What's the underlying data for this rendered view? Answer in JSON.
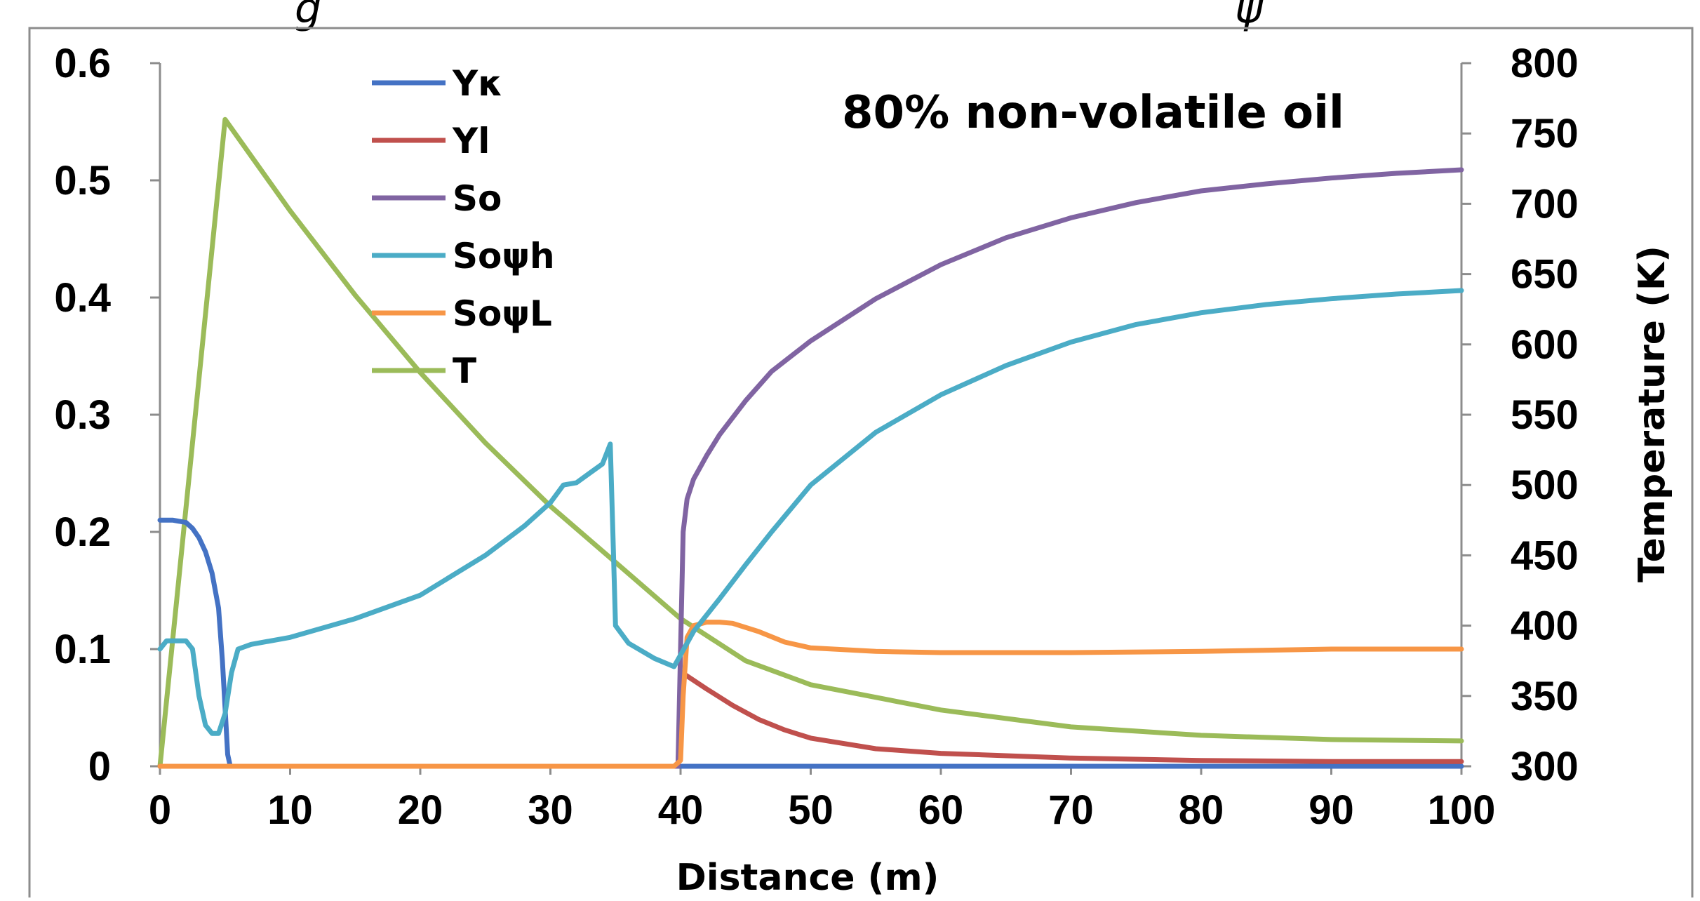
{
  "chart_data": {
    "type": "line",
    "title": "",
    "annotation": "80% non-volatile oil",
    "xlabel": "Distance (m)",
    "ylabel_left": "",
    "ylabel_right": "Temperature (K)",
    "xlim": [
      0,
      100
    ],
    "ylim_left": [
      0,
      0.6
    ],
    "ylim_right": [
      300,
      800
    ],
    "x_ticks": [
      "0",
      "10",
      "20",
      "30",
      "40",
      "50",
      "60",
      "70",
      "80",
      "90",
      "100"
    ],
    "y_left_ticks": [
      "0",
      "0.1",
      "0.2",
      "0.3",
      "0.4",
      "0.5",
      "0.6"
    ],
    "y_right_ticks": [
      "300",
      "350",
      "400",
      "450",
      "500",
      "550",
      "600",
      "650",
      "700",
      "750",
      "800"
    ],
    "grid": false,
    "legend_position": "top-left",
    "series": [
      {
        "name": "Yκ",
        "color": "#4472C4",
        "axis": "left",
        "points": [
          [
            0,
            0.21
          ],
          [
            1,
            0.21
          ],
          [
            2,
            0.208
          ],
          [
            2.5,
            0.203
          ],
          [
            3,
            0.195
          ],
          [
            3.5,
            0.183
          ],
          [
            4,
            0.165
          ],
          [
            4.5,
            0.135
          ],
          [
            4.8,
            0.09
          ],
          [
            5,
            0.05
          ],
          [
            5.2,
            0.01
          ],
          [
            5.4,
            0
          ],
          [
            40,
            0
          ],
          [
            100,
            0
          ]
        ]
      },
      {
        "name": "Yl",
        "color": "#C0504D",
        "axis": "left",
        "points": [
          [
            0,
            0
          ],
          [
            39.8,
            0
          ],
          [
            40.1,
            0.08
          ],
          [
            42,
            0.066
          ],
          [
            44,
            0.052
          ],
          [
            46,
            0.04
          ],
          [
            48,
            0.031
          ],
          [
            50,
            0.024
          ],
          [
            55,
            0.015
          ],
          [
            60,
            0.011
          ],
          [
            70,
            0.007
          ],
          [
            80,
            0.005
          ],
          [
            90,
            0.004
          ],
          [
            100,
            0.004
          ]
        ]
      },
      {
        "name": "So",
        "color": "#8064A2",
        "axis": "left",
        "points": [
          [
            0,
            0
          ],
          [
            39.8,
            0
          ],
          [
            40,
            0.1
          ],
          [
            40.2,
            0.2
          ],
          [
            40.5,
            0.228
          ],
          [
            41,
            0.245
          ],
          [
            42,
            0.265
          ],
          [
            43,
            0.283
          ],
          [
            45,
            0.312
          ],
          [
            47,
            0.337
          ],
          [
            50,
            0.363
          ],
          [
            55,
            0.399
          ],
          [
            60,
            0.428
          ],
          [
            65,
            0.451
          ],
          [
            70,
            0.468
          ],
          [
            75,
            0.481
          ],
          [
            80,
            0.491
          ],
          [
            85,
            0.497
          ],
          [
            90,
            0.502
          ],
          [
            95,
            0.506
          ],
          [
            100,
            0.509
          ]
        ]
      },
      {
        "name": "Soψh",
        "color": "#4BACC6",
        "axis": "left",
        "points": [
          [
            0,
            0.1
          ],
          [
            0.5,
            0.107
          ],
          [
            2,
            0.107
          ],
          [
            2.5,
            0.1
          ],
          [
            3,
            0.06
          ],
          [
            3.5,
            0.035
          ],
          [
            4,
            0.028
          ],
          [
            4.5,
            0.028
          ],
          [
            5,
            0.045
          ],
          [
            5.5,
            0.08
          ],
          [
            6,
            0.1
          ],
          [
            7,
            0.104
          ],
          [
            10,
            0.11
          ],
          [
            15,
            0.126
          ],
          [
            20,
            0.146
          ],
          [
            25,
            0.18
          ],
          [
            28,
            0.205
          ],
          [
            30,
            0.225
          ],
          [
            31,
            0.24
          ],
          [
            32,
            0.242
          ],
          [
            33,
            0.25
          ],
          [
            34,
            0.258
          ],
          [
            34.6,
            0.275
          ],
          [
            34.8,
            0.2
          ],
          [
            35,
            0.12
          ],
          [
            36,
            0.105
          ],
          [
            38,
            0.092
          ],
          [
            39.5,
            0.085
          ],
          [
            40,
            0.095
          ],
          [
            41,
            0.115
          ],
          [
            43,
            0.143
          ],
          [
            45,
            0.172
          ],
          [
            47,
            0.2
          ],
          [
            50,
            0.24
          ],
          [
            55,
            0.285
          ],
          [
            60,
            0.317
          ],
          [
            65,
            0.342
          ],
          [
            70,
            0.362
          ],
          [
            75,
            0.377
          ],
          [
            80,
            0.387
          ],
          [
            85,
            0.394
          ],
          [
            90,
            0.399
          ],
          [
            95,
            0.403
          ],
          [
            100,
            0.406
          ]
        ]
      },
      {
        "name": "SoψL",
        "color": "#F79646",
        "axis": "left",
        "points": [
          [
            0,
            0
          ],
          [
            39.5,
            0
          ],
          [
            40,
            0.005
          ],
          [
            40.2,
            0.06
          ],
          [
            40.5,
            0.11
          ],
          [
            41,
            0.12
          ],
          [
            42,
            0.123
          ],
          [
            43,
            0.123
          ],
          [
            44,
            0.122
          ],
          [
            46,
            0.115
          ],
          [
            48,
            0.106
          ],
          [
            50,
            0.101
          ],
          [
            55,
            0.098
          ],
          [
            60,
            0.097
          ],
          [
            70,
            0.097
          ],
          [
            80,
            0.098
          ],
          [
            90,
            0.1
          ],
          [
            100,
            0.1
          ]
        ]
      },
      {
        "name": "T",
        "color": "#9BBB59",
        "axis": "right",
        "points": [
          [
            0,
            300
          ],
          [
            5,
            760
          ],
          [
            10,
            695
          ],
          [
            15,
            635
          ],
          [
            20,
            580
          ],
          [
            25,
            530
          ],
          [
            30,
            485
          ],
          [
            35,
            445
          ],
          [
            40,
            405
          ],
          [
            45,
            375
          ],
          [
            50,
            358
          ],
          [
            60,
            340
          ],
          [
            70,
            328
          ],
          [
            80,
            322
          ],
          [
            90,
            319
          ],
          [
            100,
            318
          ]
        ]
      }
    ]
  }
}
